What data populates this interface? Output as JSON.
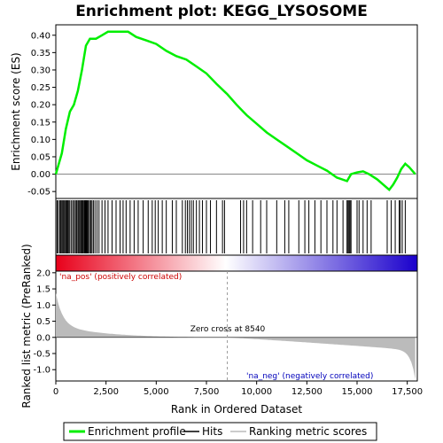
{
  "chart_data": {
    "type": "line",
    "title": "Enrichment plot: KEGG_LYSOSOME",
    "es_panel": {
      "ylabel": "Enrichment score (ES)",
      "ylim": [
        -0.07,
        0.43
      ],
      "yticks": [
        "0.40",
        "0.35",
        "0.30",
        "0.25",
        "0.20",
        "0.15",
        "0.10",
        "0.05",
        "0.00",
        "-0.05"
      ],
      "ytick_values": [
        0.4,
        0.35,
        0.3,
        0.25,
        0.2,
        0.15,
        0.1,
        0.05,
        0.0,
        -0.05
      ],
      "series_color": "#00ee00",
      "x": [
        0,
        300,
        500,
        700,
        900,
        1100,
        1300,
        1500,
        1700,
        2000,
        2300,
        2600,
        2900,
        3200,
        3600,
        4000,
        4500,
        5000,
        5500,
        6000,
        6500,
        7000,
        7500,
        8000,
        8540,
        9000,
        9500,
        10000,
        10500,
        11000,
        11500,
        12000,
        12500,
        13000,
        13500,
        14000,
        14500,
        14700,
        15000,
        15300,
        15600,
        16000,
        16300,
        16600,
        16800,
        17000,
        17200,
        17400,
        17600,
        17900
      ],
      "y": [
        0,
        0.06,
        0.13,
        0.18,
        0.2,
        0.24,
        0.3,
        0.37,
        0.39,
        0.39,
        0.4,
        0.41,
        0.41,
        0.41,
        0.41,
        0.395,
        0.385,
        0.375,
        0.355,
        0.34,
        0.33,
        0.31,
        0.29,
        0.26,
        0.23,
        0.2,
        0.17,
        0.145,
        0.12,
        0.1,
        0.08,
        0.06,
        0.04,
        0.025,
        0.01,
        -0.01,
        -0.02,
        0.0,
        0.005,
        0.008,
        0.0,
        -0.015,
        -0.03,
        -0.045,
        -0.03,
        -0.01,
        0.015,
        0.03,
        0.02,
        0.0
      ]
    },
    "hits": [
      60,
      120,
      200,
      250,
      300,
      350,
      400,
      450,
      500,
      550,
      600,
      650,
      700,
      780,
      850,
      920,
      980,
      1040,
      1100,
      1150,
      1200,
      1250,
      1300,
      1350,
      1400,
      1430,
      1460,
      1500,
      1540,
      1580,
      1620,
      1680,
      1740,
      1800,
      1870,
      1950,
      2050,
      2150,
      2300,
      2450,
      2600,
      2800,
      3000,
      3200,
      3350,
      3500,
      3700,
      3900,
      4100,
      4350,
      4600,
      4800,
      4950,
      5100,
      5300,
      5500,
      5800,
      6000,
      6300,
      6450,
      6550,
      6650,
      6750,
      6850,
      7000,
      7150,
      7300,
      7500,
      7700,
      8000,
      8300,
      8400,
      9200,
      9350,
      9500,
      9800,
      10200,
      10500,
      11000,
      11400,
      11600,
      12100,
      12400,
      12600,
      12900,
      13200,
      13500,
      13800,
      14000,
      14300,
      14500,
      14550,
      14600,
      14650,
      14700,
      15000,
      15100,
      15300,
      15500,
      15700,
      16500,
      16700,
      16900,
      17100,
      17150,
      17250,
      17400
    ],
    "heatmap": {
      "from": "#e8001a",
      "mid": "#ffffff",
      "to": "#1a00cc"
    },
    "metric_panel": {
      "ylabel": "Ranked list metric (PreRanked)",
      "ylim": [
        -1.35,
        2.05
      ],
      "yticks": [
        "2.0",
        "1.5",
        "1.0",
        "0.5",
        "0.0",
        "-0.5",
        "-1.0"
      ],
      "ytick_values": [
        2.0,
        1.5,
        1.0,
        0.5,
        0.0,
        -0.5,
        -1.0
      ],
      "pos_label": "'na_pos' (positively correlated)",
      "neg_label": "'na_neg' (negatively correlated)",
      "zero_cross_label": "Zero cross at 8540",
      "zero_cross": 8540
    },
    "xlabel": "Rank in Ordered Dataset",
    "xlim": [
      0,
      18000
    ],
    "xticks": [
      "0",
      "2,500",
      "5,000",
      "7,500",
      "10,000",
      "12,500",
      "15,000",
      "17,500"
    ],
    "xtick_values": [
      0,
      2500,
      5000,
      7500,
      10000,
      12500,
      15000,
      17500
    ],
    "legend": {
      "items": [
        {
          "label": "Enrichment profile",
          "color": "#00ee00"
        },
        {
          "label": "Hits",
          "color": "#000000"
        },
        {
          "label": "Ranking metric scores",
          "color": "#bbbbbb"
        }
      ]
    }
  }
}
